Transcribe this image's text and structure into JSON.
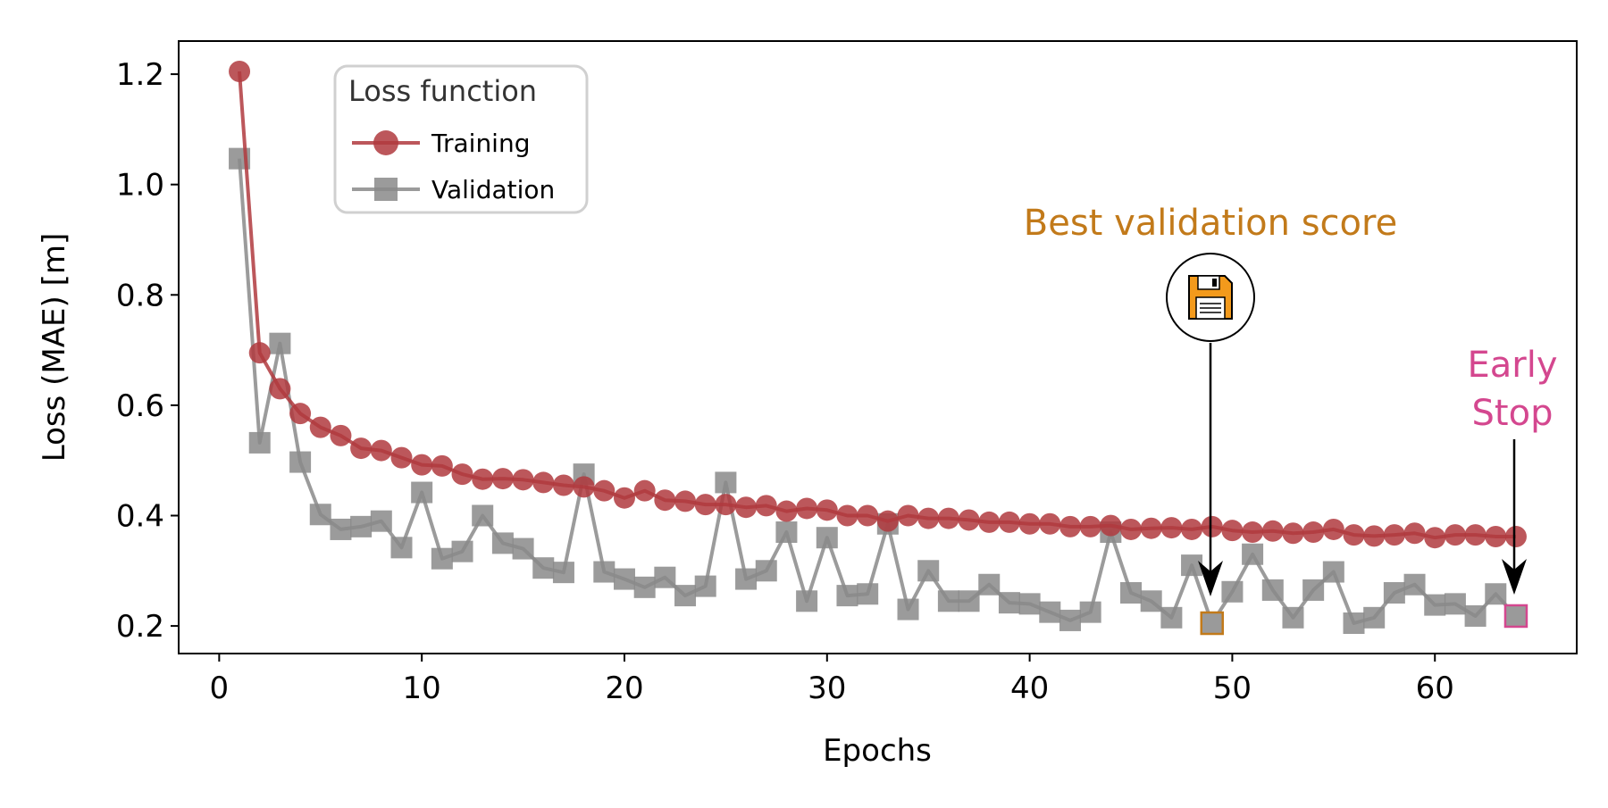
{
  "chart_data": {
    "type": "line",
    "title": "",
    "xlabel": "Epochs",
    "ylabel": "Loss (MAE) [m]",
    "xlim": [
      -2,
      67
    ],
    "ylim": [
      0.15,
      1.26
    ],
    "xticks": [
      0,
      10,
      20,
      30,
      40,
      50,
      60
    ],
    "yticks": [
      0.2,
      0.4,
      0.6,
      0.8,
      1.0,
      1.2
    ],
    "grid": false,
    "legend": {
      "title": "Loss function",
      "placement": "upper-left"
    },
    "x": [
      1,
      2,
      3,
      4,
      5,
      6,
      7,
      8,
      9,
      10,
      11,
      12,
      13,
      14,
      15,
      16,
      17,
      18,
      19,
      20,
      21,
      22,
      23,
      24,
      25,
      26,
      27,
      28,
      29,
      30,
      31,
      32,
      33,
      34,
      35,
      36,
      37,
      38,
      39,
      40,
      41,
      42,
      43,
      44,
      45,
      46,
      47,
      48,
      49,
      50,
      51,
      52,
      53,
      54,
      55,
      56,
      57,
      58,
      59,
      60,
      61,
      62,
      63,
      64
    ],
    "series": [
      {
        "name": "Training",
        "color": "#b03a3e",
        "marker": "circle",
        "values": [
          1.205,
          0.695,
          0.63,
          0.585,
          0.56,
          0.545,
          0.522,
          0.518,
          0.505,
          0.492,
          0.49,
          0.475,
          0.466,
          0.467,
          0.465,
          0.46,
          0.455,
          0.452,
          0.445,
          0.432,
          0.445,
          0.428,
          0.426,
          0.42,
          0.42,
          0.415,
          0.418,
          0.408,
          0.413,
          0.41,
          0.4,
          0.4,
          0.39,
          0.4,
          0.395,
          0.395,
          0.392,
          0.388,
          0.388,
          0.385,
          0.385,
          0.38,
          0.38,
          0.382,
          0.375,
          0.377,
          0.378,
          0.375,
          0.38,
          0.373,
          0.37,
          0.372,
          0.368,
          0.37,
          0.375,
          0.365,
          0.363,
          0.365,
          0.368,
          0.36,
          0.365,
          0.365,
          0.362,
          0.362
        ]
      },
      {
        "name": "Validation",
        "color": "#8a8a8a",
        "marker": "square",
        "values": [
          1.047,
          0.532,
          0.712,
          0.497,
          0.402,
          0.375,
          0.38,
          0.39,
          0.342,
          0.442,
          0.322,
          0.335,
          0.4,
          0.35,
          0.34,
          0.305,
          0.297,
          0.475,
          0.298,
          0.285,
          0.27,
          0.288,
          0.255,
          0.272,
          0.46,
          0.285,
          0.3,
          0.37,
          0.245,
          0.36,
          0.255,
          0.258,
          0.385,
          0.23,
          0.3,
          0.245,
          0.245,
          0.275,
          0.242,
          0.24,
          0.225,
          0.21,
          0.225,
          0.37,
          0.26,
          0.245,
          0.215,
          0.31,
          0.205,
          0.262,
          0.33,
          0.265,
          0.215,
          0.265,
          0.298,
          0.205,
          0.215,
          0.26,
          0.275,
          0.238,
          0.24,
          0.218,
          0.258,
          0.218
        ]
      }
    ],
    "annotations": {
      "best": {
        "label": "Best validation score",
        "x": 49,
        "y": 0.205,
        "color": "#c27a1a",
        "icon": "floppy-disk-icon"
      },
      "early_stop": {
        "label_line1": "Early",
        "label_line2": "Stop",
        "x": 64,
        "y": 0.218,
        "color": "#d4478f"
      }
    }
  }
}
